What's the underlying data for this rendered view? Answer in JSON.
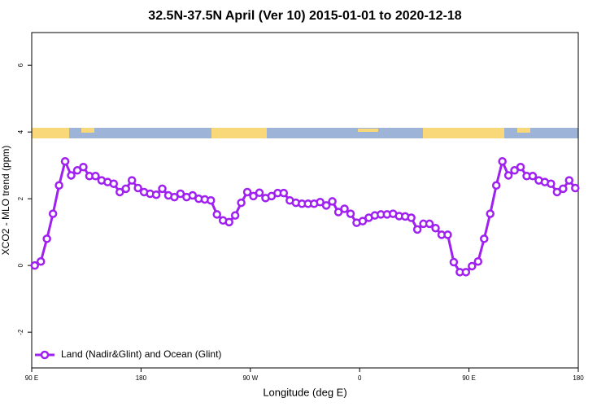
{
  "chart_data": {
    "type": "line",
    "title": "32.5N-37.5N April (Ver 10)   2015-01-01 to 2020-12-18",
    "x_label": "Longitude (deg E)",
    "y_label": "XCO2 - MLO trend (ppm)",
    "xlim": [
      90,
      540
    ],
    "ylim": [
      -3.07,
      6.98
    ],
    "xticks": [
      {
        "value": 90,
        "label": "90 E"
      },
      180,
      {
        "value": 270,
        "label": "90 W"
      },
      {
        "value": 360,
        "label": "0"
      },
      {
        "value": 450,
        "label": "90 E"
      },
      {
        "value": 540,
        "label": "180"
      }
    ],
    "yticks": [
      -2,
      0,
      2,
      4,
      6
    ],
    "legend_position": "bottom-left",
    "x": [
      92.5,
      97.5,
      102.5,
      107.5,
      112.5,
      117.5,
      122.5,
      127.5,
      132.5,
      137.5,
      142.5,
      147.5,
      152.5,
      157.5,
      162.5,
      167.5,
      172.5,
      177.5,
      182.5,
      187.5,
      192.5,
      197.5,
      202.5,
      207.5,
      212.5,
      217.5,
      222.5,
      227.5,
      232.5,
      237.5,
      242.5,
      247.5,
      252.5,
      257.5,
      262.5,
      267.5,
      272.5,
      277.5,
      282.5,
      287.5,
      292.5,
      297.5,
      302.5,
      307.5,
      312.5,
      317.5,
      322.5,
      327.5,
      332.5,
      337.5,
      342.5,
      347.5,
      352.5,
      357.5,
      362.5,
      367.5,
      372.5,
      377.5,
      382.5,
      387.5,
      392.5,
      397.5,
      402.5,
      407.5,
      412.5,
      417.5,
      422.5,
      427.5,
      432.5,
      437.5,
      442.5,
      447.5,
      452.5,
      457.5,
      462.5,
      467.5,
      472.5,
      477.5,
      482.5,
      487.5,
      492.5,
      497.5,
      502.5,
      507.5,
      512.5,
      517.5,
      522.5,
      527.5,
      532.5,
      537.5
    ],
    "series": [
      {
        "name": "Land (Nadir&Glint) and Ocean (Glint)",
        "color": "#a020f0",
        "values": [
          0.0,
          0.12,
          0.8,
          1.55,
          2.4,
          3.12,
          2.7,
          2.85,
          2.95,
          2.68,
          2.68,
          2.55,
          2.5,
          2.45,
          2.2,
          2.3,
          2.55,
          2.32,
          2.2,
          2.15,
          2.12,
          2.3,
          2.1,
          2.05,
          2.15,
          2.05,
          2.1,
          2.0,
          1.98,
          1.95,
          1.53,
          1.35,
          1.3,
          1.5,
          1.88,
          2.2,
          2.08,
          2.18,
          2.02,
          2.08,
          2.17,
          2.17,
          1.95,
          1.88,
          1.85,
          1.85,
          1.85,
          1.9,
          1.8,
          1.92,
          1.6,
          1.7,
          1.55,
          1.28,
          1.33,
          1.43,
          1.5,
          1.53,
          1.53,
          1.55,
          1.48,
          1.47,
          1.43,
          1.08,
          1.25,
          1.25,
          1.12,
          0.92,
          0.92,
          0.1,
          -0.2,
          -0.2,
          -0.02,
          0.12,
          0.8,
          1.55,
          2.4,
          3.12,
          2.7,
          2.85,
          2.95,
          2.68,
          2.68,
          2.55,
          2.5,
          2.45,
          2.2,
          2.3,
          2.55,
          2.32
        ]
      }
    ]
  }
}
